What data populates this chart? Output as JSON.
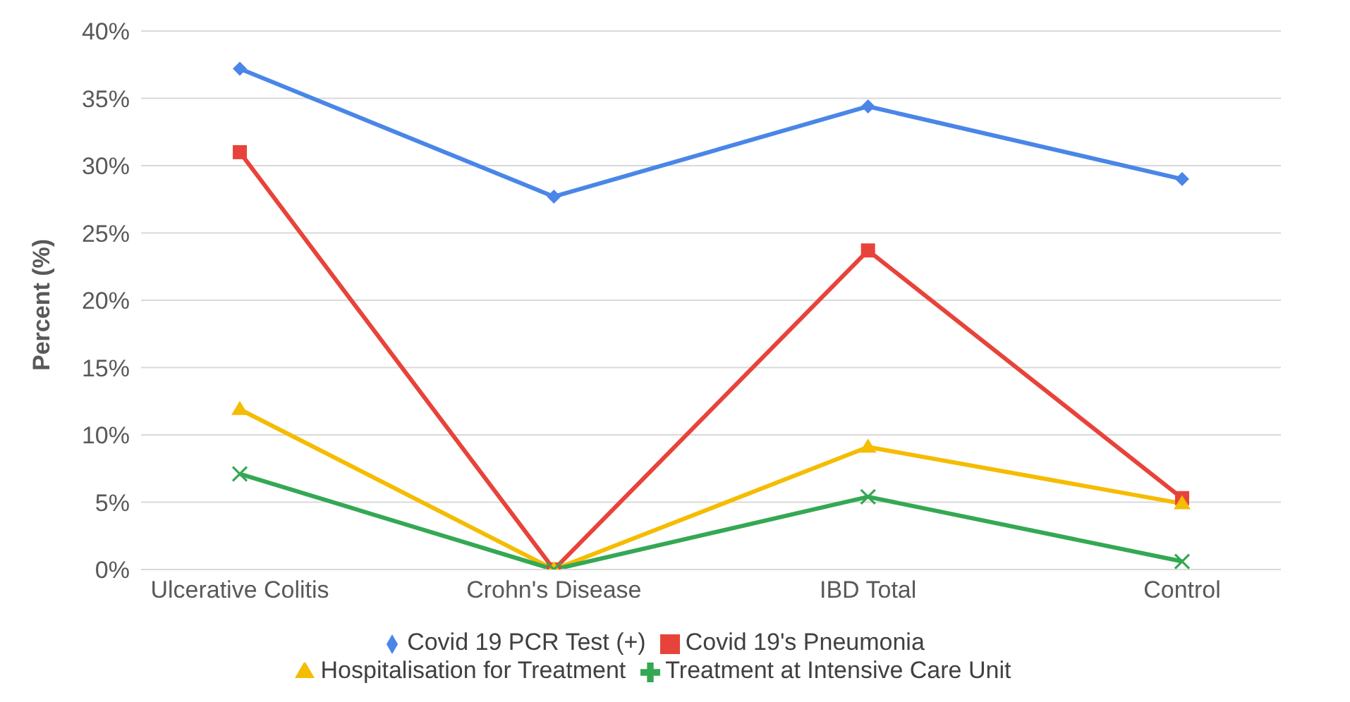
{
  "chart_data": {
    "type": "line",
    "ylabel": "Percent (%)",
    "categories": [
      "Ulcerative Colitis",
      "Crohn's Disease",
      "IBD Total",
      "Control"
    ],
    "series": [
      {
        "name": "Covid 19 PCR Test (+)",
        "color": "#4a86e8",
        "marker": "diamond",
        "values": [
          37.2,
          27.7,
          34.4,
          29.0
        ]
      },
      {
        "name": "Covid 19's Pneumonia",
        "color": "#e8433a",
        "marker": "square",
        "values": [
          31.0,
          0,
          23.7,
          5.3
        ]
      },
      {
        "name": "Hospitalisation for Treatment",
        "color": "#f5bc00",
        "marker": "triangle",
        "values": [
          11.9,
          0,
          9.1,
          4.9
        ]
      },
      {
        "name": "Treatment at Intensive Care Unit",
        "color": "#34a853",
        "marker": "cross",
        "values": [
          7.1,
          0,
          5.4,
          0.6
        ]
      }
    ],
    "ylim": [
      0,
      40
    ],
    "yticks": [
      {
        "value": 0,
        "label": "0%"
      },
      {
        "value": 5,
        "label": "5%"
      },
      {
        "value": 10,
        "label": "10%"
      },
      {
        "value": 15,
        "label": "15%"
      },
      {
        "value": 20,
        "label": "20%"
      },
      {
        "value": 25,
        "label": "25%"
      },
      {
        "value": 30,
        "label": "30%"
      },
      {
        "value": 35,
        "label": "35%"
      },
      {
        "value": 40,
        "label": "40%"
      }
    ],
    "grid": "y",
    "legend": "bottom",
    "line_style": "solid"
  }
}
